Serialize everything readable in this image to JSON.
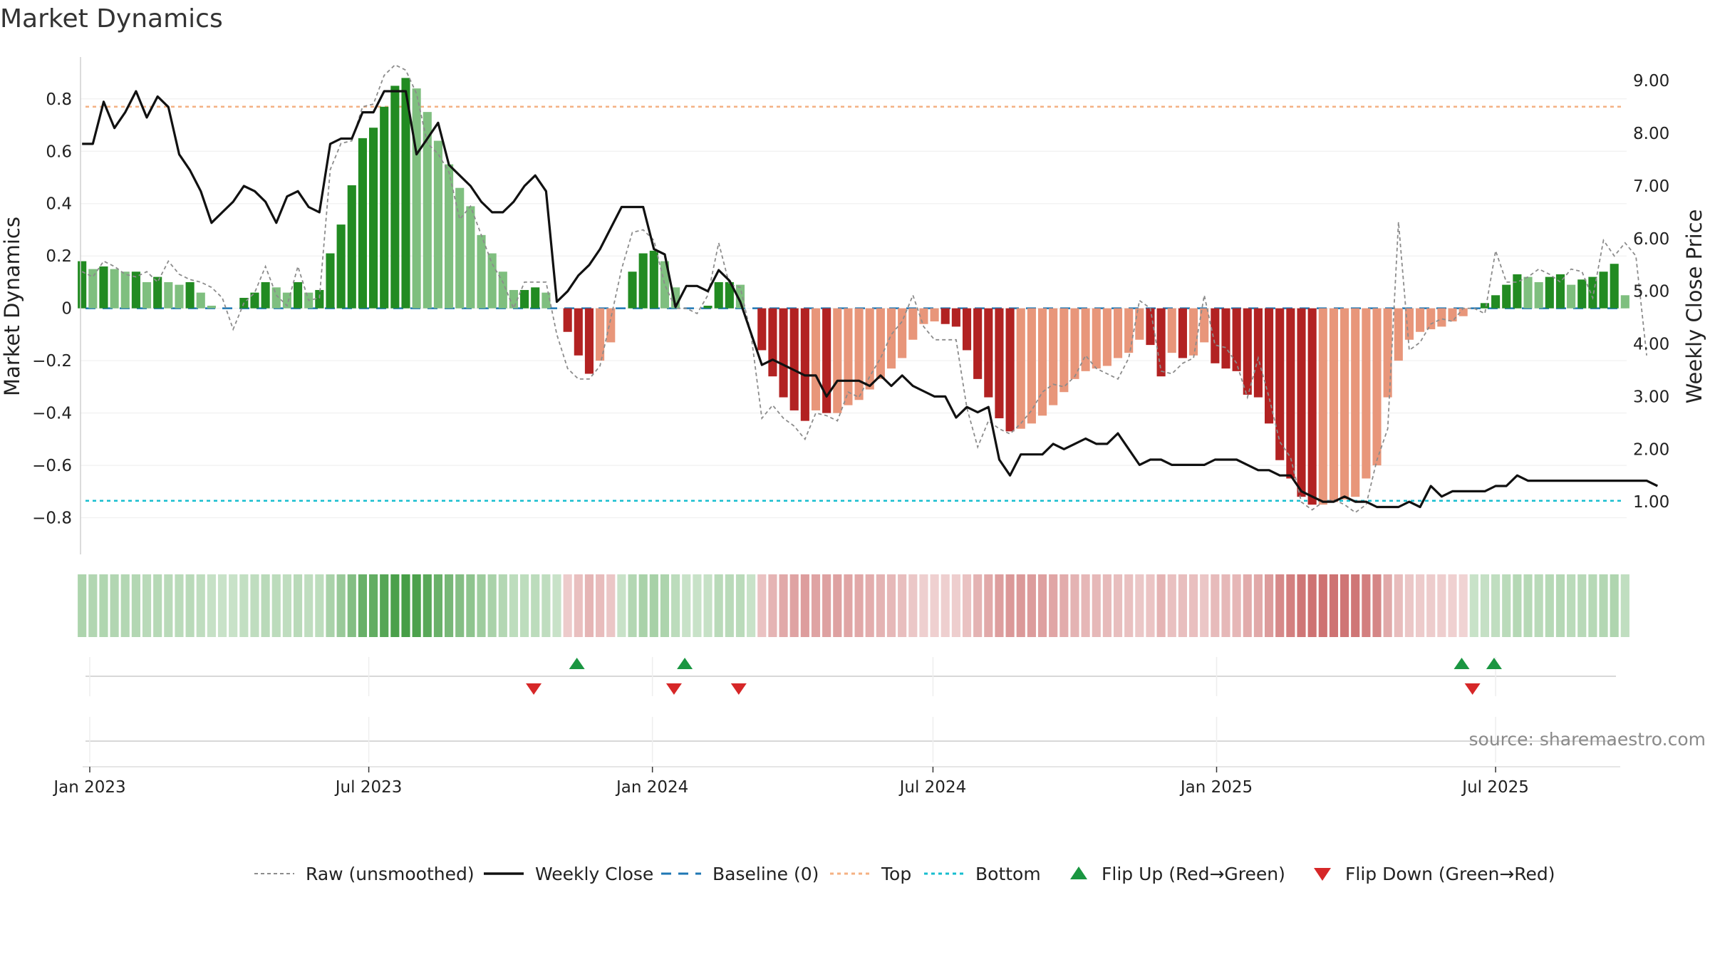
{
  "chart_data": {
    "type": "bar",
    "title": "Market Dynamics",
    "ylabel_left": "Market Dynamics",
    "ylabel_right": "Weekly Close Price",
    "ylim_left": [
      -0.94,
      0.96
    ],
    "ylim_right": [
      0.0,
      9.45
    ],
    "yticks_left": [
      {
        "v": 0.8,
        "label": "0.8"
      },
      {
        "v": 0.6,
        "label": "0.6"
      },
      {
        "v": 0.4,
        "label": "0.4"
      },
      {
        "v": 0.2,
        "label": "0.2"
      },
      {
        "v": 0.0,
        "label": "0"
      },
      {
        "v": -0.2,
        "label": "−0.2"
      },
      {
        "v": -0.4,
        "label": "−0.4"
      },
      {
        "v": -0.6,
        "label": "−0.6"
      },
      {
        "v": -0.8,
        "label": "−0.8"
      }
    ],
    "yticks_right": [
      {
        "v": 9,
        "label": "9.00"
      },
      {
        "v": 8,
        "label": "8.00"
      },
      {
        "v": 7,
        "label": "7.00"
      },
      {
        "v": 6,
        "label": "6.00"
      },
      {
        "v": 5,
        "label": "5.00"
      },
      {
        "v": 4,
        "label": "4.00"
      },
      {
        "v": 3,
        "label": "3.00"
      },
      {
        "v": 2,
        "label": "2.00"
      },
      {
        "v": 1,
        "label": "1.00"
      }
    ],
    "x_range": [
      "2022-12-26",
      "2025-09-24"
    ],
    "xticks": [
      {
        "date": "2023-01-01",
        "label": "Jan 2023"
      },
      {
        "date": "2023-07-01",
        "label": "Jul 2023"
      },
      {
        "date": "2024-01-01",
        "label": "Jan 2024"
      },
      {
        "date": "2024-07-01",
        "label": "Jul 2024"
      },
      {
        "date": "2025-01-01",
        "label": "Jan 2025"
      },
      {
        "date": "2025-07-01",
        "label": "Jul 2025"
      }
    ],
    "start_date": "2022-12-27",
    "week_days": 7,
    "dynamics": [
      0.18,
      0.15,
      0.16,
      0.15,
      0.14,
      0.14,
      0.1,
      0.12,
      0.1,
      0.09,
      0.1,
      0.06,
      0.01,
      0.0,
      0.0,
      0.04,
      0.06,
      0.1,
      0.08,
      0.06,
      0.1,
      0.06,
      0.07,
      0.21,
      0.32,
      0.47,
      0.65,
      0.69,
      0.77,
      0.85,
      0.88,
      0.84,
      0.75,
      0.64,
      0.55,
      0.46,
      0.39,
      0.28,
      0.21,
      0.14,
      0.07,
      0.07,
      0.08,
      0.06,
      0.0,
      -0.09,
      -0.18,
      -0.25,
      -0.2,
      -0.13,
      0.0,
      0.14,
      0.21,
      0.22,
      0.18,
      0.08,
      0.0,
      0.0,
      0.01,
      0.1,
      0.1,
      0.09,
      0.0,
      -0.16,
      -0.26,
      -0.34,
      -0.39,
      -0.43,
      -0.39,
      -0.4,
      -0.4,
      -0.37,
      -0.35,
      -0.31,
      -0.27,
      -0.23,
      -0.19,
      -0.12,
      -0.06,
      -0.05,
      -0.06,
      -0.07,
      -0.16,
      -0.27,
      -0.34,
      -0.42,
      -0.47,
      -0.46,
      -0.44,
      -0.41,
      -0.37,
      -0.32,
      -0.27,
      -0.24,
      -0.23,
      -0.22,
      -0.19,
      -0.17,
      -0.12,
      -0.14,
      -0.26,
      -0.17,
      -0.19,
      -0.18,
      -0.13,
      -0.21,
      -0.23,
      -0.24,
      -0.33,
      -0.34,
      -0.44,
      -0.58,
      -0.65,
      -0.72,
      -0.75,
      -0.75,
      -0.74,
      -0.73,
      -0.72,
      -0.65,
      -0.6,
      -0.34,
      -0.2,
      -0.12,
      -0.09,
      -0.08,
      -0.07,
      -0.05,
      -0.03,
      0.0,
      0.02,
      0.05,
      0.09,
      0.13,
      0.12,
      0.1,
      0.12,
      0.13,
      0.09,
      0.11,
      0.12,
      0.14,
      0.17,
      0.05
    ],
    "raw": [
      0.14,
      0.12,
      0.18,
      0.16,
      0.13,
      0.12,
      0.14,
      0.1,
      0.18,
      0.13,
      0.11,
      0.1,
      0.08,
      0.04,
      -0.08,
      0.02,
      0.06,
      0.16,
      0.05,
      0.01,
      0.16,
      0.03,
      0.04,
      0.53,
      0.63,
      0.64,
      0.77,
      0.78,
      0.89,
      0.93,
      0.91,
      0.82,
      0.63,
      0.59,
      0.52,
      0.34,
      0.39,
      0.28,
      0.17,
      0.1,
      0.0,
      0.1,
      0.1,
      0.1,
      -0.1,
      -0.23,
      -0.27,
      -0.27,
      -0.22,
      -0.04,
      0.15,
      0.29,
      0.3,
      0.26,
      0.09,
      0.0,
      0.0,
      -0.02,
      0.05,
      0.25,
      0.09,
      0.08,
      -0.1,
      -0.42,
      -0.37,
      -0.42,
      -0.45,
      -0.5,
      -0.4,
      -0.41,
      -0.43,
      -0.32,
      -0.34,
      -0.26,
      -0.19,
      -0.1,
      -0.05,
      0.05,
      -0.07,
      -0.12,
      -0.12,
      -0.12,
      -0.38,
      -0.53,
      -0.43,
      -0.46,
      -0.48,
      -0.44,
      -0.39,
      -0.32,
      -0.29,
      -0.3,
      -0.26,
      -0.18,
      -0.23,
      -0.25,
      -0.27,
      -0.19,
      0.03,
      0.0,
      -0.24,
      -0.25,
      -0.21,
      -0.19,
      0.05,
      -0.14,
      -0.15,
      -0.21,
      -0.34,
      -0.19,
      -0.34,
      -0.51,
      -0.57,
      -0.74,
      -0.77,
      -0.74,
      -0.73,
      -0.75,
      -0.78,
      -0.75,
      -0.58,
      -0.46,
      0.33,
      -0.16,
      -0.13,
      -0.06,
      -0.04,
      -0.05,
      0.0,
      0.0,
      -0.02,
      0.22,
      0.1,
      0.1,
      0.12,
      0.15,
      0.13,
      0.1,
      0.15,
      0.14,
      0.04,
      0.26,
      0.2,
      0.25,
      0.2,
      -0.18
    ],
    "close": [
      7.8,
      7.8,
      8.6,
      8.1,
      8.4,
      8.8,
      8.3,
      8.7,
      8.5,
      7.6,
      7.3,
      6.9,
      6.3,
      6.5,
      6.7,
      7.0,
      6.9,
      6.7,
      6.3,
      6.8,
      6.9,
      6.6,
      6.5,
      7.8,
      7.9,
      7.9,
      8.4,
      8.4,
      8.8,
      8.8,
      8.8,
      7.6,
      7.9,
      8.2,
      7.4,
      7.2,
      7.0,
      6.7,
      6.5,
      6.5,
      6.7,
      7.0,
      7.2,
      6.9,
      4.8,
      5.0,
      5.3,
      5.5,
      5.8,
      6.2,
      6.6,
      6.6,
      6.6,
      5.8,
      5.7,
      4.7,
      5.1,
      5.1,
      5.0,
      5.4,
      5.2,
      4.8,
      4.2,
      3.6,
      3.7,
      3.6,
      3.5,
      3.4,
      3.4,
      3.0,
      3.3,
      3.3,
      3.3,
      3.2,
      3.4,
      3.2,
      3.4,
      3.2,
      3.1,
      3.0,
      3.0,
      2.6,
      2.8,
      2.7,
      2.8,
      1.8,
      1.5,
      1.9,
      1.9,
      1.9,
      2.1,
      2.0,
      2.1,
      2.2,
      2.1,
      2.1,
      2.3,
      2.0,
      1.7,
      1.8,
      1.8,
      1.7,
      1.7,
      1.7,
      1.7,
      1.8,
      1.8,
      1.8,
      1.7,
      1.6,
      1.6,
      1.5,
      1.5,
      1.2,
      1.1,
      1.0,
      1.0,
      1.1,
      1.0,
      1.0,
      0.9,
      0.9,
      0.9,
      1.0,
      0.9,
      1.3,
      1.1,
      1.2,
      1.2,
      1.2,
      1.2,
      1.3,
      1.3,
      1.5,
      1.4,
      1.4,
      1.4,
      1.4,
      1.4,
      1.4,
      1.4,
      1.4,
      1.4,
      1.4,
      1.4,
      1.4,
      1.3
    ],
    "top_level": 0.77,
    "bottom_level": -0.735,
    "baseline": 0,
    "flip_up_dates": [
      "2023-11-13",
      "2024-01-22",
      "2025-06-09",
      "2025-06-30"
    ],
    "flip_down_dates": [
      "2023-10-16",
      "2024-01-15",
      "2024-02-26",
      "2025-06-16"
    ],
    "legend": {
      "raw": "Raw (unsmoothed)",
      "close": "Weekly Close",
      "baseline": "Baseline (0)",
      "top": "Top",
      "bottom": "Bottom",
      "flip_up": "Flip Up (Red→Green)",
      "flip_down": "Flip Down (Green→Red)"
    },
    "source": "source: sharemaestro.com",
    "colors": {
      "pos_strong": "#228b22",
      "pos_weak": "#7fbf7f",
      "neg_strong": "#b22222",
      "neg_weak": "#e8967a",
      "close_line": "#111111",
      "raw_line": "#8c8c8c",
      "baseline": "#1f77b4",
      "top": "#f4b183",
      "bottom": "#17becf",
      "flip_up": "#1a9641",
      "flip_down": "#d62728"
    }
  }
}
